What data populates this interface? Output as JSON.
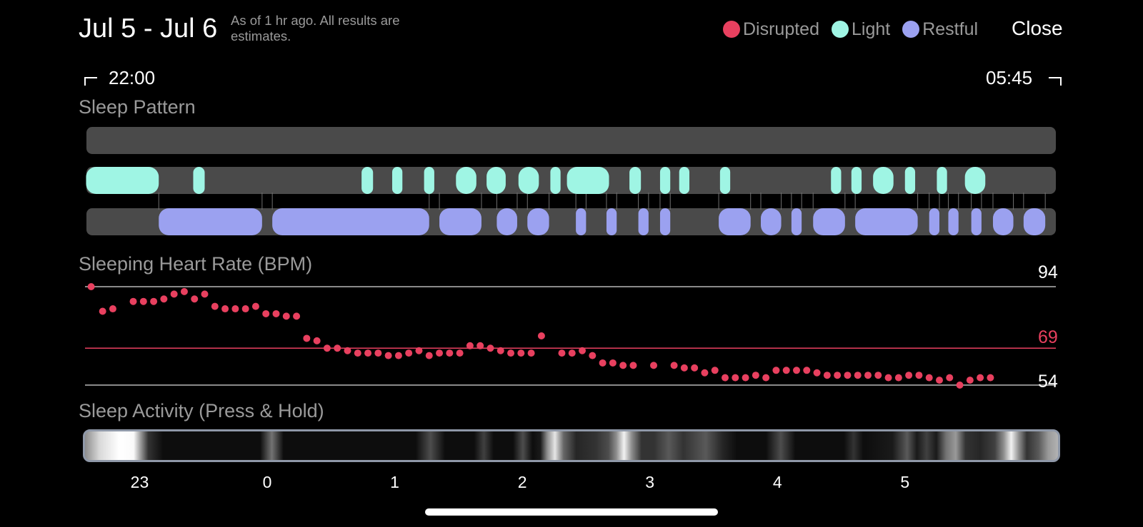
{
  "header": {
    "date_range": "Jul 5 - Jul 6",
    "as_of": "As of 1 hr ago. All results are estimates.",
    "close_label": "Close",
    "legend": [
      {
        "label": "Disrupted",
        "color": "#e8405f"
      },
      {
        "label": "Light",
        "color": "#9ff5e4"
      },
      {
        "label": "Restful",
        "color": "#9ba1f0"
      }
    ]
  },
  "time_range": {
    "start": "22:00",
    "end": "05:45"
  },
  "sections": {
    "sleep_pattern": "Sleep Pattern",
    "heart_rate": "Sleeping Heart Rate (BPM)",
    "activity": "Sleep Activity (Press & Hold)"
  },
  "chart_data": [
    {
      "type": "timeline",
      "title": "Sleep Pattern",
      "x_range_hours": [
        22.583,
        30.183
      ],
      "rows": [
        "Disrupted",
        "Light",
        "Restful"
      ],
      "colors": {
        "Disrupted": "#e8405f",
        "Light": "#9ff5e4",
        "Restful": "#9ba1f0"
      },
      "segments": {
        "Disrupted": [],
        "Light": [
          [
            22.58,
            23.15
          ],
          [
            23.42,
            23.51
          ],
          [
            24.74,
            24.83
          ],
          [
            24.98,
            25.06
          ],
          [
            25.23,
            25.31
          ],
          [
            25.48,
            25.64
          ],
          [
            25.72,
            25.87
          ],
          [
            25.97,
            26.13
          ],
          [
            26.22,
            26.3
          ],
          [
            26.35,
            26.68
          ],
          [
            26.84,
            26.93
          ],
          [
            27.08,
            27.16
          ],
          [
            27.23,
            27.31
          ],
          [
            27.55,
            27.63
          ],
          [
            28.42,
            28.5
          ],
          [
            28.58,
            28.66
          ],
          [
            28.75,
            28.91
          ],
          [
            29.0,
            29.08
          ],
          [
            29.25,
            29.33
          ],
          [
            29.47,
            29.63
          ]
        ],
        "Restful": [
          [
            23.15,
            23.96
          ],
          [
            24.04,
            25.27
          ],
          [
            25.35,
            25.68
          ],
          [
            25.8,
            25.96
          ],
          [
            26.04,
            26.21
          ],
          [
            26.42,
            26.5
          ],
          [
            26.66,
            26.74
          ],
          [
            26.91,
            26.99
          ],
          [
            27.08,
            27.16
          ],
          [
            27.54,
            27.79
          ],
          [
            27.87,
            28.03
          ],
          [
            28.11,
            28.19
          ],
          [
            28.28,
            28.53
          ],
          [
            28.61,
            29.1
          ],
          [
            29.19,
            29.27
          ],
          [
            29.34,
            29.42
          ],
          [
            29.52,
            29.6
          ],
          [
            29.69,
            29.85
          ],
          [
            29.93,
            30.1
          ]
        ]
      }
    },
    {
      "type": "scatter",
      "title": "Sleeping Heart Rate (BPM)",
      "ylabel": "BPM",
      "max": 94,
      "avg": 69,
      "min": 54,
      "ylim": [
        54,
        94
      ],
      "x_hours": [
        22.62,
        22.71,
        22.79,
        22.95,
        23.03,
        23.11,
        23.19,
        23.27,
        23.35,
        23.43,
        23.51,
        23.59,
        23.67,
        23.75,
        23.83,
        23.91,
        23.99,
        24.07,
        24.15,
        24.23,
        24.31,
        24.39,
        24.47,
        24.55,
        24.63,
        24.71,
        24.79,
        24.87,
        24.95,
        25.03,
        25.11,
        25.19,
        25.27,
        25.35,
        25.43,
        25.51,
        25.59,
        25.67,
        25.75,
        25.83,
        25.91,
        25.99,
        26.07,
        26.15,
        26.31,
        26.39,
        26.47,
        26.55,
        26.63,
        26.71,
        26.79,
        26.87,
        27.03,
        27.19,
        27.27,
        27.35,
        27.43,
        27.51,
        27.59,
        27.67,
        27.75,
        27.83,
        27.91,
        27.99,
        28.07,
        28.15,
        28.23,
        28.31,
        28.39,
        28.47,
        28.55,
        28.63,
        28.71,
        28.79,
        28.87,
        28.95,
        29.03,
        29.11,
        29.19,
        29.27,
        29.35,
        29.43,
        29.51,
        29.59,
        29.67
      ],
      "values": [
        94,
        84,
        85,
        88,
        88,
        88,
        89,
        91,
        92,
        89,
        91,
        86,
        85,
        85,
        85,
        86,
        83,
        83,
        82,
        82,
        73,
        72,
        69,
        69,
        68,
        67,
        67,
        67,
        66,
        66,
        67,
        68,
        66,
        67,
        67,
        67,
        70,
        70,
        69,
        68,
        67,
        67,
        67,
        74,
        67,
        67,
        68,
        66,
        63,
        63,
        62,
        62,
        62,
        62,
        61,
        61,
        59,
        60,
        57,
        57,
        57,
        58,
        57,
        60,
        60,
        60,
        60,
        59,
        58,
        58,
        58,
        58,
        58,
        58,
        57,
        57,
        58,
        58,
        57,
        56,
        57,
        54,
        56,
        57,
        57
      ]
    },
    {
      "type": "timeline",
      "title": "Sleep Activity (Press & Hold)",
      "xlabel": "",
      "x_ticks": [
        "23",
        "0",
        "1",
        "2",
        "3",
        "4",
        "5"
      ],
      "x_tick_hours": [
        23,
        24,
        25,
        26,
        27,
        28,
        29
      ]
    }
  ]
}
